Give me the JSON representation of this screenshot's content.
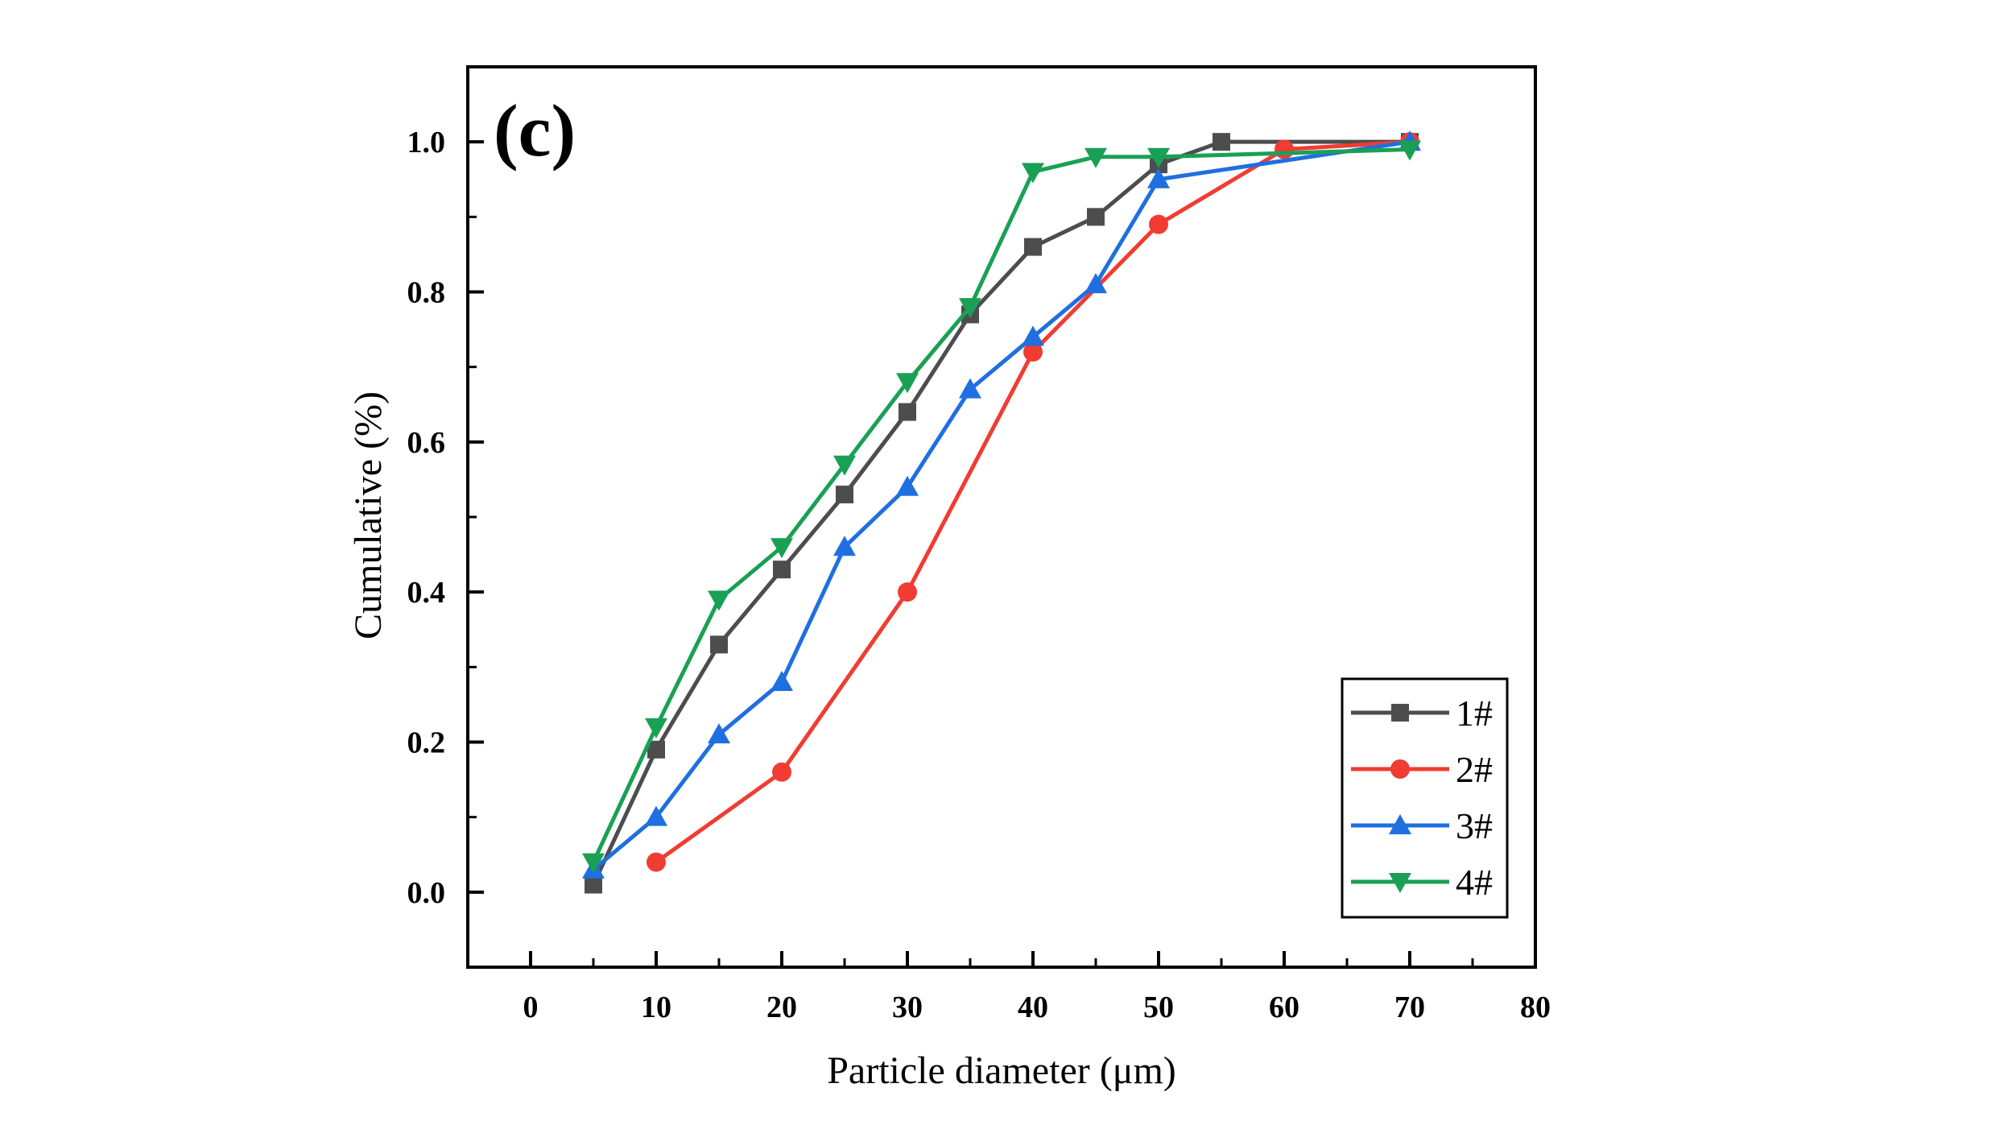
{
  "chart_data": {
    "type": "line",
    "panel_label": "(c)",
    "xlabel": "Particle diameter (μm)",
    "ylabel": "Cumulative (%)",
    "xlim": [
      -5,
      80
    ],
    "ylim": [
      -0.1,
      1.1
    ],
    "xticks": [
      0,
      10,
      20,
      30,
      40,
      50,
      60,
      70,
      80
    ],
    "xtick_labels": [
      "0",
      "10",
      "20",
      "30",
      "40",
      "50",
      "60",
      "70",
      "80"
    ],
    "yticks": [
      0.0,
      0.2,
      0.4,
      0.6,
      0.8,
      1.0
    ],
    "ytick_labels": [
      "0.0",
      "0.2",
      "0.4",
      "0.6",
      "0.8",
      "1.0"
    ],
    "grid": false,
    "legend_position": "bottom-right",
    "series": [
      {
        "name": "1#",
        "color": "#4d4d4d",
        "marker": "square",
        "x": [
          5,
          10,
          15,
          20,
          25,
          30,
          35,
          40,
          45,
          50,
          55,
          70
        ],
        "values": [
          0.01,
          0.19,
          0.33,
          0.43,
          0.53,
          0.64,
          0.77,
          0.86,
          0.9,
          0.97,
          1.0,
          1.0
        ]
      },
      {
        "name": "2#",
        "color": "#f03c32",
        "marker": "circle",
        "x": [
          10,
          20,
          30,
          40,
          50,
          60,
          70
        ],
        "values": [
          0.04,
          0.16,
          0.4,
          0.72,
          0.89,
          0.99,
          1.0
        ]
      },
      {
        "name": "3#",
        "color": "#1f6fe0",
        "marker": "triangle-up",
        "x": [
          5,
          10,
          15,
          20,
          25,
          30,
          35,
          40,
          45,
          50,
          70
        ],
        "values": [
          0.03,
          0.1,
          0.21,
          0.28,
          0.46,
          0.54,
          0.67,
          0.74,
          0.81,
          0.95,
          1.0
        ]
      },
      {
        "name": "4#",
        "color": "#1aa055",
        "marker": "triangle-down",
        "x": [
          5,
          10,
          15,
          20,
          25,
          30,
          35,
          40,
          45,
          50,
          70
        ],
        "values": [
          0.04,
          0.22,
          0.39,
          0.46,
          0.57,
          0.68,
          0.78,
          0.96,
          0.98,
          0.98,
          0.99
        ]
      }
    ]
  }
}
